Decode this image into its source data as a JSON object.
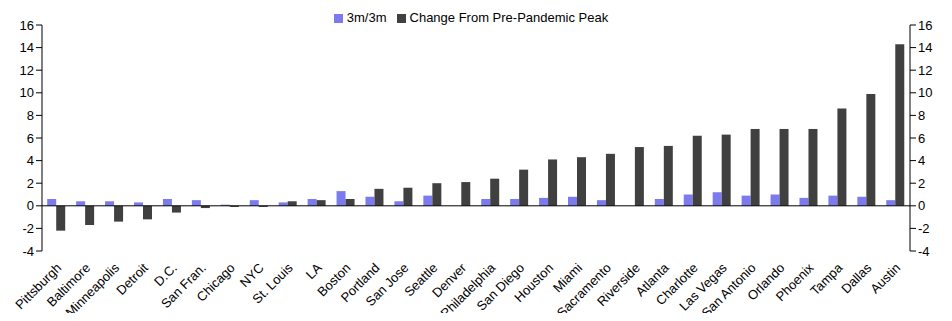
{
  "chart_data": {
    "type": "bar",
    "categories": [
      "Pittsburgh",
      "Baltimore",
      "Minneapolis",
      "Detroit",
      "D.C.",
      "San Fran.",
      "Chicago",
      "NYC",
      "St. Louis",
      "LA",
      "Boston",
      "Portland",
      "San Jose",
      "Seattle",
      "Denver",
      "Philadelphia",
      "San Diego",
      "Houston",
      "Miami",
      "Sacramento",
      "Riverside",
      "Atlanta",
      "Charlotte",
      "Las Vegas",
      "San Antonio",
      "Orlando",
      "Phoenix",
      "Tampa",
      "Dallas",
      "Austin"
    ],
    "series": [
      {
        "name": "3m/3m",
        "color": "#7b7bee",
        "values": [
          0.6,
          0.4,
          0.4,
          0.3,
          0.6,
          0.5,
          0.1,
          0.5,
          0.3,
          0.6,
          1.3,
          0.8,
          0.4,
          0.9,
          0.0,
          0.6,
          0.6,
          0.7,
          0.8,
          0.5,
          0.0,
          0.6,
          1.0,
          1.2,
          0.9,
          1.0,
          0.7,
          0.9,
          0.8,
          0.5
        ]
      },
      {
        "name": "Change From Pre-Pandemic Peak",
        "color": "#404040",
        "values": [
          -2.2,
          -1.7,
          -1.4,
          -1.2,
          -0.6,
          -0.2,
          -0.1,
          -0.1,
          0.4,
          0.5,
          0.6,
          1.5,
          1.6,
          2.0,
          2.1,
          2.4,
          3.2,
          4.1,
          4.3,
          4.6,
          5.2,
          5.3,
          6.2,
          6.3,
          6.8,
          6.8,
          6.8,
          8.6,
          9.9,
          14.3
        ]
      }
    ],
    "ylim": [
      -4,
      16
    ],
    "yticks": [
      -4,
      -2,
      0,
      2,
      4,
      6,
      8,
      10,
      12,
      14,
      16
    ],
    "y2lim": [
      -4,
      16
    ],
    "y2ticks": [
      -4,
      -2,
      0,
      2,
      4,
      6,
      8,
      10,
      12,
      14,
      16
    ],
    "grid": false,
    "legend": "top"
  }
}
